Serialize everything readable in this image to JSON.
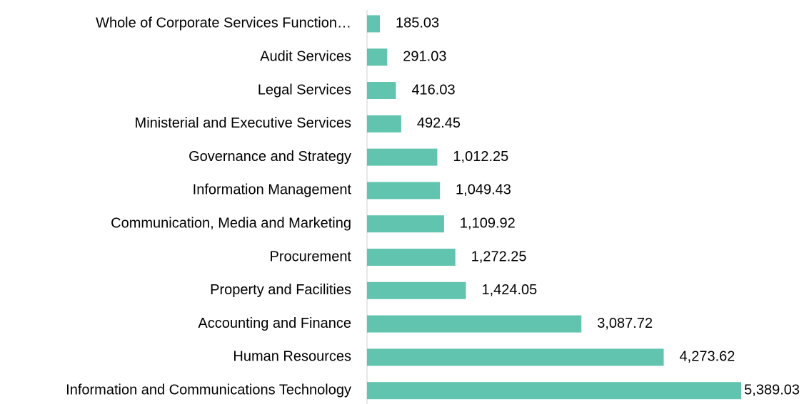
{
  "chart_data": {
    "type": "bar",
    "orientation": "horizontal",
    "categories": [
      "Whole of Corporate Services Function…",
      "Audit Services",
      "Legal Services",
      "Ministerial and Executive Services",
      "Governance and Strategy",
      "Information Management",
      "Communication, Media and Marketing",
      "Procurement",
      "Property and Facilities",
      "Accounting and Finance",
      "Human Resources",
      "Information and Communications Technology"
    ],
    "values": [
      185.03,
      291.03,
      416.03,
      492.45,
      1012.25,
      1049.43,
      1109.92,
      1272.25,
      1424.05,
      3087.72,
      4273.62,
      5389.03
    ],
    "value_labels": [
      "185.03",
      "291.03",
      "416.03",
      "492.45",
      "1,012.25",
      "1,049.43",
      "1,109.92",
      "1,272.25",
      "1,424.05",
      "3,087.72",
      "4,273.62",
      "5,389.03"
    ],
    "color": "#60c4ae"
  }
}
